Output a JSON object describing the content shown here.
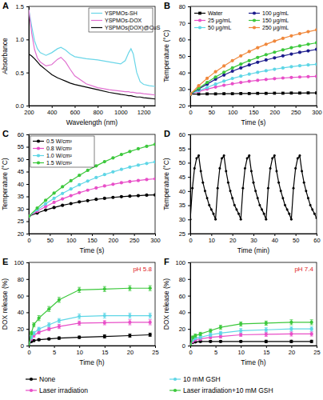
{
  "chart_data": [
    {
      "type": "line",
      "title": "A",
      "x_label": "Wavelength (nm)",
      "y_label": "Absorbance",
      "xlim": [
        200,
        1300
      ],
      "xticks": [
        200,
        400,
        600,
        800,
        1000,
        1200
      ],
      "ylim": [
        0,
        1.5
      ],
      "yticks": [
        {
          "value": 0,
          "label": "0.0"
        },
        0.5,
        {
          "value": 1,
          "label": "1.0"
        },
        1.5
      ],
      "legend": "top-right",
      "x": [
        200,
        225,
        250,
        275,
        300,
        350,
        400,
        450,
        480,
        520,
        560,
        600,
        700,
        800,
        900,
        1000,
        1040,
        1070,
        1090,
        1110,
        1140,
        1170,
        1200,
        1250,
        1300
      ],
      "series": [
        {
          "name": "YSPMOs-SH",
          "color": "#6ad6e8",
          "line_style": "solid",
          "values": [
            1.45,
            1.2,
            0.98,
            0.86,
            0.8,
            0.76,
            0.8,
            0.86,
            0.88,
            0.84,
            0.78,
            0.74,
            0.71,
            0.69,
            0.66,
            0.63,
            0.68,
            0.8,
            0.86,
            0.78,
            0.5,
            0.36,
            0.32,
            0.3,
            0.29
          ]
        },
        {
          "name": "YSPMOs-DOX",
          "color": "#e070d0",
          "line_style": "solid",
          "values": [
            1.45,
            1.1,
            0.85,
            0.72,
            0.66,
            0.6,
            0.62,
            0.7,
            0.73,
            0.66,
            0.55,
            0.45,
            0.33,
            0.27,
            0.24,
            0.22,
            0.21,
            0.21,
            0.2,
            0.2,
            0.19,
            0.19,
            0.18,
            0.17,
            0.16
          ]
        },
        {
          "name": "YSPMOs(DOX)@CuS",
          "color": "#000000",
          "line_style": "solid",
          "values": [
            0.78,
            0.75,
            0.71,
            0.66,
            0.61,
            0.54,
            0.47,
            0.42,
            0.4,
            0.37,
            0.34,
            0.32,
            0.28,
            0.24,
            0.2,
            0.17,
            0.16,
            0.15,
            0.15,
            0.14,
            0.13,
            0.13,
            0.12,
            0.11,
            0.1
          ]
        }
      ]
    },
    {
      "type": "line",
      "title": "B",
      "x_label": "Time (s)",
      "y_label": "Temperature (°C)",
      "xlim": [
        0,
        300
      ],
      "xticks": [
        0,
        50,
        100,
        150,
        200,
        250,
        300
      ],
      "ylim": [
        20,
        80
      ],
      "yticks": [
        20,
        30,
        40,
        50,
        60,
        70,
        80
      ],
      "legend": "top-left",
      "x": [
        0,
        20,
        40,
        60,
        80,
        100,
        120,
        140,
        160,
        180,
        200,
        220,
        240,
        260,
        280,
        300
      ],
      "series": [
        {
          "name": "Water",
          "color": "#000000",
          "marker": "square",
          "values": [
            27,
            27,
            27.1,
            27.1,
            27.2,
            27.2,
            27.3,
            27.3,
            27.4,
            27.4,
            27.5,
            27.5,
            27.6,
            27.6,
            27.7,
            27.7
          ]
        },
        {
          "name": "25 μg/mL",
          "color": "#e84fc8",
          "marker": "circle",
          "values": [
            27,
            28.5,
            30,
            31.2,
            32.3,
            33.2,
            34,
            34.7,
            35.3,
            35.8,
            36.3,
            36.7,
            37,
            37.3,
            37.5,
            37.7
          ]
        },
        {
          "name": "50 μg/mL",
          "color": "#5fd6e6",
          "marker": "circle",
          "values": [
            27,
            29,
            31,
            33,
            34.8,
            36.4,
            37.8,
            39,
            40.1,
            41.1,
            42,
            42.8,
            43.5,
            44.1,
            44.6,
            45
          ]
        },
        {
          "name": "100 μg/mL",
          "color": "#1c1c8c",
          "marker": "circle",
          "values": [
            27,
            30,
            33,
            36,
            38.5,
            40.8,
            42.8,
            44.6,
            46.2,
            47.6,
            48.9,
            50.1,
            51.2,
            52.2,
            53.1,
            54
          ]
        },
        {
          "name": "150 μg/mL",
          "color": "#3cc83c",
          "marker": "circle",
          "values": [
            27,
            30.5,
            34,
            37.3,
            40.2,
            42.8,
            45.1,
            47.2,
            49.1,
            50.8,
            52.3,
            53.7,
            55,
            56.1,
            57.1,
            58
          ]
        },
        {
          "name": "250 μg/mL",
          "color": "#f0883c",
          "marker": "circle",
          "values": [
            27,
            32,
            36.5,
            40.5,
            44,
            47.2,
            50.1,
            52.7,
            55,
            57.1,
            59,
            60.7,
            62.2,
            63.5,
            64.7,
            65.8
          ]
        }
      ]
    },
    {
      "type": "line",
      "title": "C",
      "x_label": "Time (s)",
      "y_label": "Temperature (°C)",
      "xlim": [
        0,
        300
      ],
      "xticks": [
        0,
        50,
        100,
        150,
        200,
        250,
        300
      ],
      "ylim": [
        20,
        60
      ],
      "yticks": [
        20,
        25,
        30,
        35,
        40,
        45,
        50,
        55,
        60
      ],
      "legend": "top-left",
      "x": [
        0,
        20,
        40,
        60,
        80,
        100,
        120,
        140,
        160,
        180,
        200,
        220,
        240,
        260,
        280,
        300
      ],
      "series": [
        {
          "name": "0.5 W/cm²",
          "color": "#000000",
          "marker": "circle",
          "values": [
            27,
            28.3,
            29.5,
            30.5,
            31.4,
            32.1,
            32.8,
            33.3,
            33.8,
            34.2,
            34.6,
            34.9,
            35.1,
            35.3,
            35.5,
            35.6
          ]
        },
        {
          "name": "0.8 W/cm²",
          "color": "#e84fc8",
          "marker": "circle",
          "values": [
            27,
            29,
            30.9,
            32.6,
            34,
            35.3,
            36.5,
            37.5,
            38.4,
            39.2,
            39.9,
            40.5,
            41,
            41.4,
            41.8,
            42.1
          ]
        },
        {
          "name": "1.0 W/cm²",
          "color": "#5fd6e6",
          "marker": "circle",
          "values": [
            27,
            29.6,
            32,
            34.2,
            36.2,
            38,
            39.7,
            41.2,
            42.6,
            43.8,
            44.9,
            45.9,
            46.8,
            47.6,
            48.3,
            48.9
          ]
        },
        {
          "name": "1.5 W/cm²",
          "color": "#3cc83c",
          "marker": "circle",
          "values": [
            27,
            30.3,
            33.4,
            36.3,
            38.9,
            41.3,
            43.5,
            45.5,
            47.3,
            49,
            50.5,
            51.9,
            53.1,
            54.2,
            55.2,
            56
          ]
        }
      ]
    },
    {
      "type": "line",
      "title": "D",
      "x_label": "Time (min)",
      "y_label": "Temperature (°C)",
      "xlim": [
        0,
        60
      ],
      "xticks": [
        0,
        10,
        20,
        30,
        40,
        50,
        60
      ],
      "ylim": [
        25,
        60
      ],
      "yticks": [
        25,
        30,
        35,
        40,
        45,
        50,
        55,
        60
      ],
      "x": [
        0,
        1,
        2,
        3,
        4,
        5,
        6,
        7,
        8,
        9,
        10,
        11,
        12,
        13,
        14,
        15,
        16,
        17,
        18,
        19,
        20,
        21,
        22,
        23,
        24,
        25,
        26,
        27,
        28,
        29,
        30,
        31,
        32,
        33,
        34,
        35,
        36,
        37,
        38,
        39,
        40,
        41,
        42,
        43,
        44,
        45,
        46,
        47,
        48,
        49,
        50,
        51,
        52,
        53,
        54,
        55,
        56,
        57,
        58,
        59,
        60
      ],
      "series": [
        {
          "color": "#000000",
          "marker": "circle",
          "values": [
            30,
            41,
            48,
            51.5,
            52.5,
            47,
            43,
            40,
            37.5,
            35,
            33.5,
            32,
            30,
            41,
            48,
            51.5,
            52.5,
            47,
            43,
            40,
            37.5,
            35,
            33.5,
            32,
            30,
            41,
            48,
            51.5,
            52.5,
            47,
            43,
            40,
            37.5,
            35,
            33.5,
            32,
            30,
            41,
            48,
            51.5,
            52.5,
            47,
            43,
            40,
            37.5,
            35,
            33.5,
            32,
            30,
            41,
            48,
            51.5,
            52.5,
            47,
            43,
            40,
            37.5,
            35,
            33.5,
            32,
            30.5
          ]
        }
      ]
    },
    {
      "type": "line",
      "title": "E",
      "x_label": "Time (h)",
      "y_label": "DOX release (%)",
      "annotation": "pH 5.8",
      "xlim": [
        0,
        25
      ],
      "xticks": [
        0,
        5,
        10,
        15,
        20,
        25
      ],
      "ylim": [
        0,
        100
      ],
      "yticks": [
        0,
        20,
        40,
        60,
        80,
        100
      ],
      "legend": "bottom",
      "x": [
        0,
        0.5,
        1,
        2,
        4,
        6,
        10,
        15,
        20,
        24
      ],
      "series": [
        {
          "name": "None",
          "color": "#000000",
          "marker": "circle",
          "values": [
            0,
            5,
            6,
            7,
            8,
            9,
            10,
            11,
            12,
            13
          ],
          "errors": [
            0,
            1,
            1,
            1,
            1,
            1.5,
            1.5,
            2,
            2,
            2
          ]
        },
        {
          "name": "Laser irradiation",
          "color": "#e84fc8",
          "marker": "circle",
          "values": [
            0,
            8,
            12,
            16,
            20,
            23,
            27,
            27.5,
            28,
            28
          ],
          "errors": [
            0,
            1.5,
            2,
            2,
            2,
            2.5,
            2.5,
            2.5,
            3,
            3
          ]
        },
        {
          "name": "10 mM GSH",
          "color": "#5fd6e6",
          "marker": "circle",
          "values": [
            0,
            10,
            15,
            20,
            25,
            30,
            35,
            36,
            36,
            36
          ],
          "errors": [
            0,
            1.5,
            2,
            2,
            2.5,
            2.5,
            3,
            3,
            3,
            3
          ]
        },
        {
          "name": "Laser irradiation+10 mM GSH",
          "color": "#3cc83c",
          "marker": "circle",
          "values": [
            0,
            15,
            25,
            33,
            44,
            55,
            67,
            68,
            69,
            69
          ],
          "errors": [
            0,
            2,
            2.5,
            3,
            3,
            3,
            3,
            3,
            3,
            3
          ]
        }
      ]
    },
    {
      "type": "line",
      "title": "F",
      "x_label": "Time (h)",
      "y_label": "DOX release (%)",
      "annotation": "pH 7.4",
      "xlim": [
        0,
        25
      ],
      "xticks": [
        0,
        5,
        10,
        15,
        20,
        25
      ],
      "ylim": [
        0,
        100
      ],
      "yticks": [
        0,
        20,
        40,
        60,
        80,
        100
      ],
      "x": [
        0,
        0.5,
        1,
        2,
        4,
        6,
        10,
        15,
        20,
        24
      ],
      "series": [
        {
          "color": "#000000",
          "marker": "circle",
          "values": [
            0,
            4,
            4.5,
            5,
            5,
            5,
            5,
            5,
            5,
            5
          ],
          "errors": [
            0,
            1,
            1,
            1,
            1,
            1,
            1,
            1.5,
            1.5,
            1.5
          ]
        },
        {
          "color": "#e84fc8",
          "marker": "circle",
          "values": [
            0,
            5,
            7,
            8,
            10,
            11,
            13,
            13.5,
            14,
            14
          ],
          "errors": [
            0,
            1,
            1.5,
            1.5,
            2,
            2,
            2,
            2.5,
            2.5,
            2.5
          ]
        },
        {
          "color": "#5fd6e6",
          "marker": "circle",
          "values": [
            0,
            7,
            9,
            10,
            13,
            15,
            18,
            19,
            20,
            20
          ],
          "errors": [
            0,
            1.5,
            1.5,
            2,
            2,
            2,
            2.5,
            2.5,
            2.5,
            2.5
          ]
        },
        {
          "color": "#3cc83c",
          "marker": "circle",
          "values": [
            0,
            10,
            12,
            14,
            18,
            22,
            26,
            27,
            28,
            28
          ],
          "errors": [
            0,
            1.5,
            2,
            2,
            2,
            2.5,
            2.5,
            2.5,
            3,
            3
          ]
        }
      ]
    }
  ]
}
